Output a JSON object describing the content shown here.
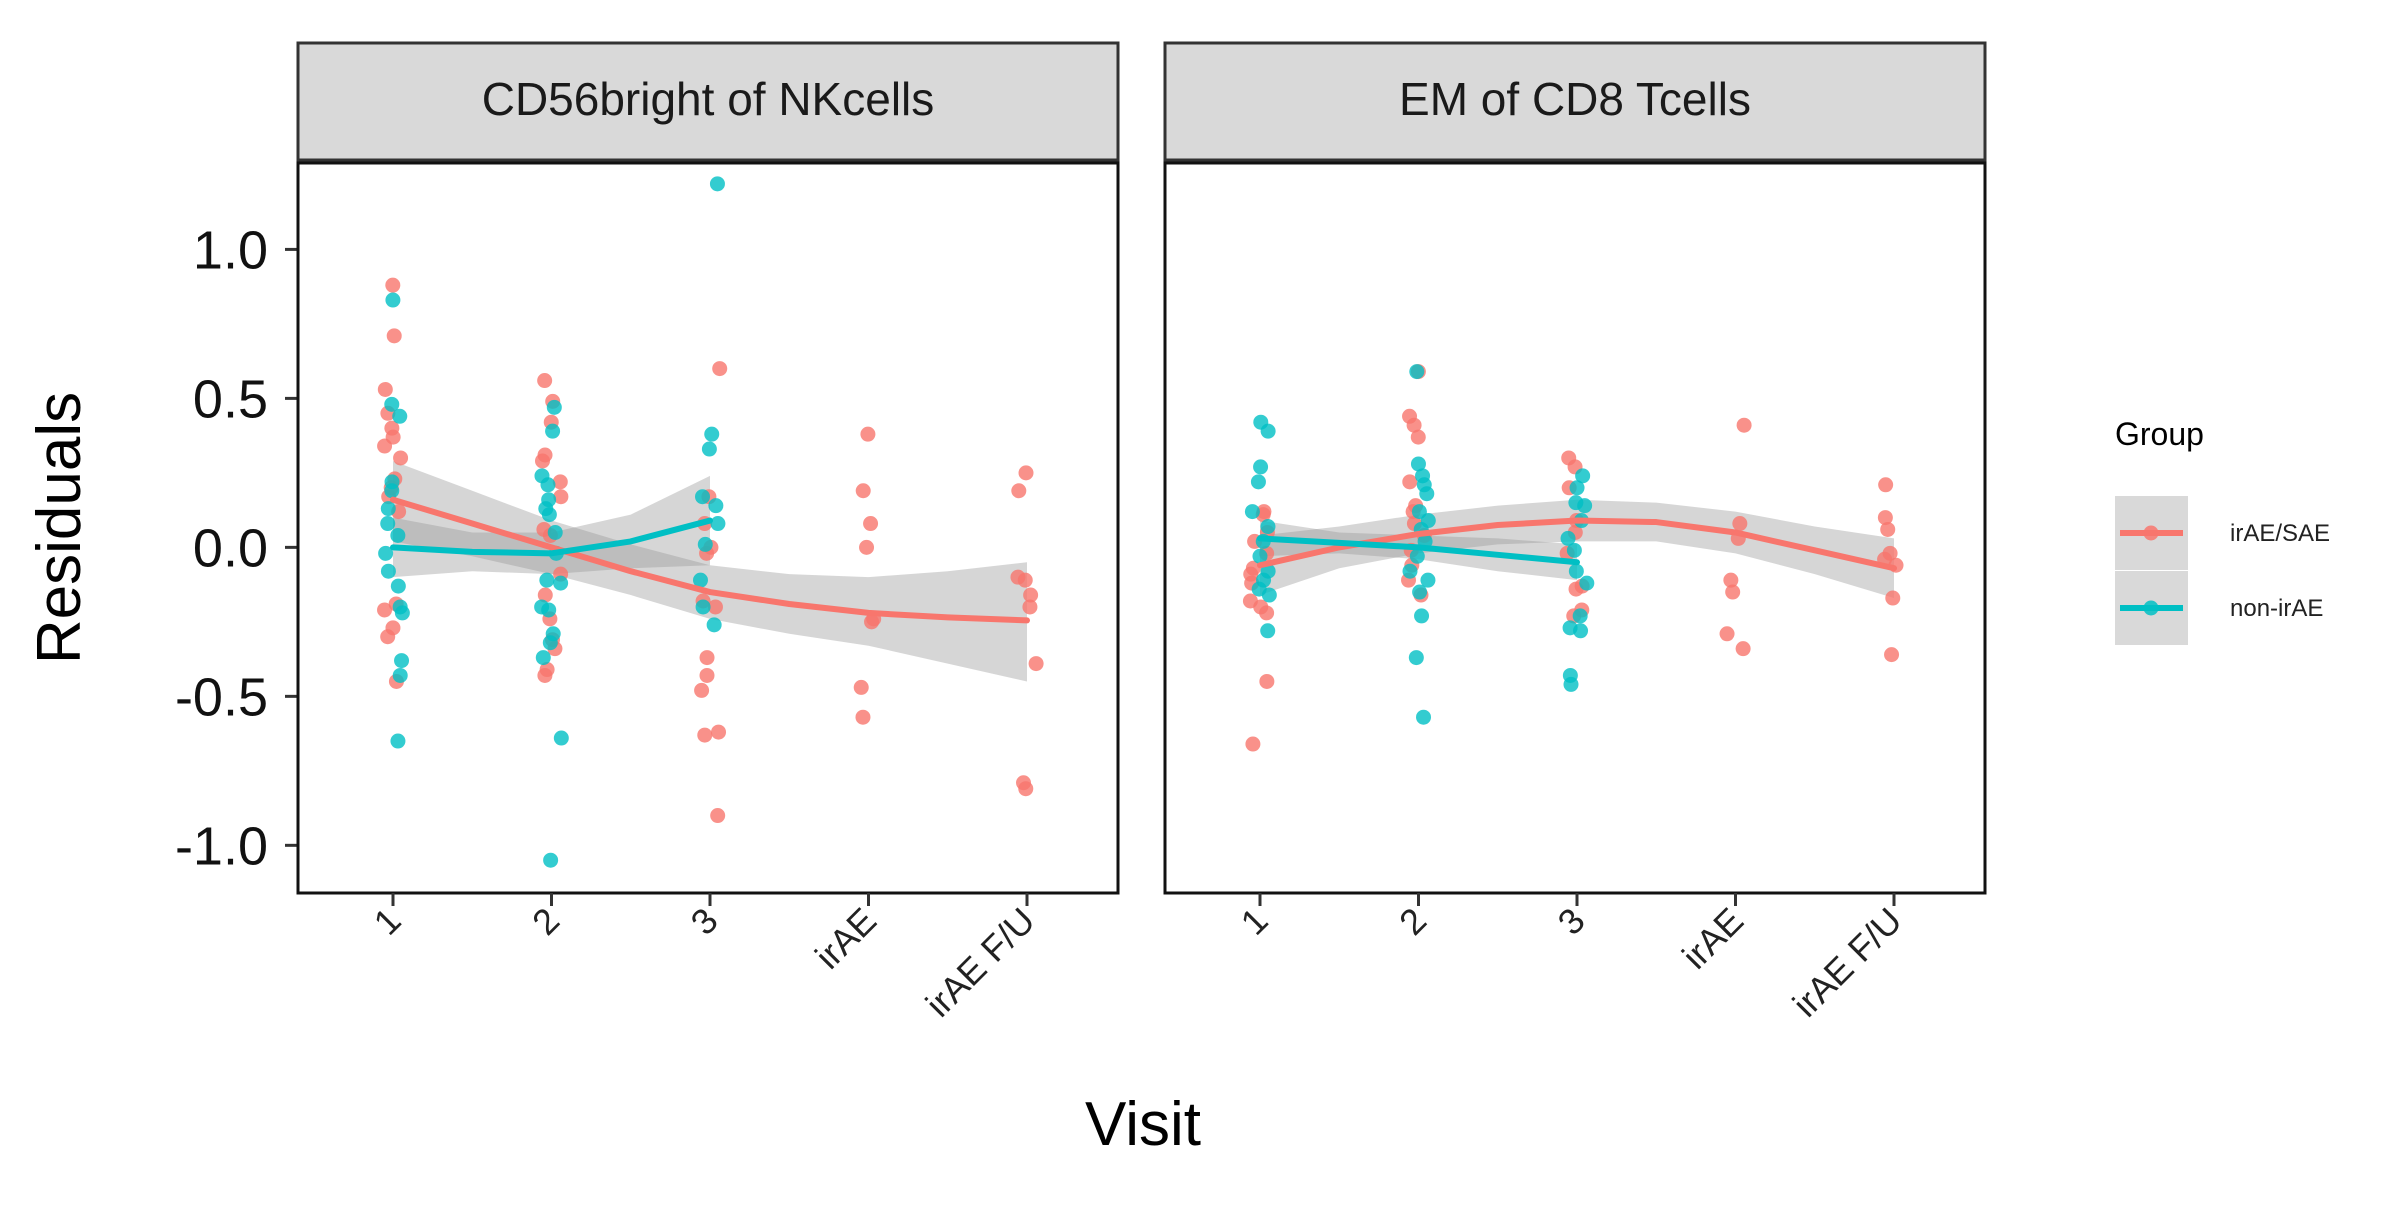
{
  "chart_data": {
    "type": "scatter",
    "ylabel": "Residuals",
    "xlabel": "Visit",
    "categories": [
      "1",
      "2",
      "3",
      "irAE",
      "irAE F/U"
    ],
    "yticks": [
      "1.0",
      "0.5",
      "0.0",
      "-0.5",
      "-1.0"
    ],
    "ytick_values": [
      1.0,
      0.5,
      0.0,
      -0.5,
      -1.0
    ],
    "ylim": [
      -1.16,
      1.29
    ],
    "grid": false,
    "legend": {
      "title": "Group",
      "position": "right",
      "entries": [
        {
          "label": "irAE/SAE",
          "color": "#F8766D"
        },
        {
          "label": "non-irAE",
          "color": "#00BFC4"
        }
      ]
    },
    "panels": [
      {
        "title": "CD56bright of NKcells",
        "series": [
          {
            "name": "irAE/SAE",
            "color": "#F8766D",
            "points": {
              "1": [
                0.88,
                0.71,
                0.53,
                0.45,
                0.4,
                0.37,
                0.34,
                0.3,
                0.23,
                0.2,
                0.17,
                0.12,
                -0.19,
                -0.21,
                -0.27,
                -0.3,
                -0.45
              ],
              "2": [
                0.56,
                0.49,
                0.42,
                0.31,
                0.29,
                0.22,
                0.17,
                0.06,
                0.04,
                -0.09,
                -0.16,
                -0.24,
                -0.31,
                -0.34,
                -0.41,
                -0.43
              ],
              "3": [
                0.6,
                0.17,
                0.08,
                -0.0,
                -0.02,
                -0.18,
                -0.2,
                -0.37,
                -0.43,
                -0.48,
                -0.62,
                -0.63,
                -0.9
              ],
              "irAE": [
                0.38,
                0.19,
                0.08,
                0.0,
                -0.24,
                -0.25,
                -0.47,
                -0.57
              ],
              "irAE F/U": [
                0.25,
                0.19,
                -0.1,
                -0.11,
                -0.16,
                -0.2,
                -0.39,
                -0.79,
                -0.81
              ]
            },
            "smooth": [
              [
                1,
                0.16
              ],
              [
                1.5,
                0.08
              ],
              [
                2,
                0.0
              ],
              [
                2.5,
                -0.08
              ],
              [
                3,
                -0.15
              ],
              [
                3.5,
                -0.19
              ],
              [
                4,
                -0.22
              ],
              [
                4.5,
                -0.235
              ],
              [
                5,
                -0.245
              ]
            ],
            "band": [
              [
                1,
                0.29,
                0.02
              ],
              [
                1.5,
                0.19,
                -0.03
              ],
              [
                2,
                0.09,
                -0.09
              ],
              [
                2.5,
                0.01,
                -0.16
              ],
              [
                3,
                -0.06,
                -0.24
              ],
              [
                3.5,
                -0.09,
                -0.29
              ],
              [
                4,
                -0.1,
                -0.33
              ],
              [
                4.5,
                -0.08,
                -0.39
              ],
              [
                5,
                -0.05,
                -0.45
              ]
            ]
          },
          {
            "name": "non-irAE",
            "color": "#00BFC4",
            "points": {
              "1": [
                0.83,
                0.48,
                0.44,
                0.22,
                0.19,
                0.13,
                0.08,
                0.04,
                -0.02,
                -0.08,
                -0.13,
                -0.2,
                -0.22,
                -0.38,
                -0.43,
                -0.65
              ],
              "2": [
                0.47,
                0.39,
                0.24,
                0.21,
                0.16,
                0.13,
                0.11,
                0.05,
                -0.02,
                -0.11,
                -0.12,
                -0.2,
                -0.21,
                -0.29,
                -0.32,
                -0.37,
                -0.64,
                -1.05
              ],
              "3": [
                1.22,
                0.38,
                0.33,
                0.17,
                0.14,
                0.08,
                0.01,
                -0.11,
                -0.2,
                -0.26
              ]
            },
            "smooth": [
              [
                1,
                0.0
              ],
              [
                1.5,
                -0.015
              ],
              [
                2,
                -0.02
              ],
              [
                2.5,
                0.02
              ],
              [
                3,
                0.09
              ]
            ],
            "band": [
              [
                1,
                0.1,
                -0.1
              ],
              [
                1.5,
                0.05,
                -0.08
              ],
              [
                2,
                0.05,
                -0.09
              ],
              [
                2.5,
                0.11,
                -0.07
              ],
              [
                3,
                0.24,
                -0.06
              ]
            ]
          }
        ]
      },
      {
        "title": "EM of CD8 Tcells",
        "series": [
          {
            "name": "irAE/SAE",
            "color": "#F8766D",
            "points": {
              "1": [
                0.12,
                0.11,
                0.05,
                0.02,
                -0.02,
                -0.07,
                -0.09,
                -0.12,
                -0.18,
                -0.2,
                -0.22,
                -0.45,
                -0.66
              ],
              "2": [
                0.59,
                0.44,
                0.41,
                0.37,
                0.22,
                0.14,
                0.12,
                0.08,
                0.04,
                -0.01,
                -0.06,
                -0.11,
                -0.16
              ],
              "3": [
                0.3,
                0.27,
                0.2,
                0.09,
                0.05,
                -0.02,
                -0.13,
                -0.14,
                -0.21,
                -0.23
              ],
              "irAE": [
                0.41,
                0.08,
                0.03,
                -0.11,
                -0.15,
                -0.29,
                -0.34
              ],
              "irAE F/U": [
                0.21,
                0.1,
                0.06,
                -0.02,
                -0.04,
                -0.06,
                -0.17,
                -0.36
              ]
            },
            "smooth": [
              [
                1,
                -0.06
              ],
              [
                1.5,
                0.0
              ],
              [
                2,
                0.045
              ],
              [
                2.5,
                0.075
              ],
              [
                3,
                0.09
              ],
              [
                3.5,
                0.085
              ],
              [
                4,
                0.05
              ],
              [
                4.5,
                -0.01
              ],
              [
                5,
                -0.07
              ]
            ],
            "band": [
              [
                1,
                0.04,
                -0.16
              ],
              [
                1.5,
                0.07,
                -0.07
              ],
              [
                2,
                0.11,
                -0.02
              ],
              [
                2.5,
                0.14,
                0.01
              ],
              [
                3,
                0.16,
                0.02
              ],
              [
                3.5,
                0.15,
                0.02
              ],
              [
                4,
                0.12,
                -0.02
              ],
              [
                4.5,
                0.07,
                -0.09
              ],
              [
                5,
                0.03,
                -0.17
              ]
            ]
          },
          {
            "name": "non-irAE",
            "color": "#00BFC4",
            "points": {
              "1": [
                0.42,
                0.39,
                0.27,
                0.22,
                0.12,
                0.07,
                0.02,
                -0.03,
                -0.08,
                -0.11,
                -0.14,
                -0.16,
                -0.28
              ],
              "2": [
                0.59,
                0.28,
                0.24,
                0.21,
                0.18,
                0.12,
                0.09,
                0.06,
                0.02,
                -0.03,
                -0.08,
                -0.11,
                -0.15,
                -0.23,
                -0.37,
                -0.57
              ],
              "3": [
                0.24,
                0.2,
                0.15,
                0.14,
                0.09,
                0.03,
                -0.01,
                -0.08,
                -0.12,
                -0.23,
                -0.27,
                -0.28,
                -0.43,
                -0.46
              ]
            },
            "smooth": [
              [
                1,
                0.03
              ],
              [
                1.5,
                0.015
              ],
              [
                2,
                0.0
              ],
              [
                2.5,
                -0.025
              ],
              [
                3,
                -0.05
              ]
            ],
            "band": [
              [
                1,
                0.09,
                -0.03
              ],
              [
                1.5,
                0.05,
                -0.02
              ],
              [
                2,
                0.04,
                -0.04
              ],
              [
                2.5,
                0.03,
                -0.08
              ],
              [
                3,
                0.01,
                -0.11
              ]
            ]
          }
        ]
      }
    ]
  }
}
